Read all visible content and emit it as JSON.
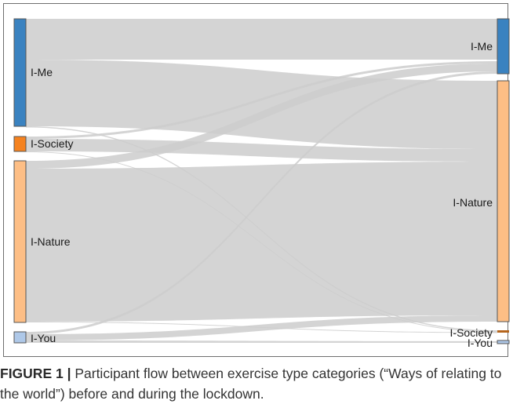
{
  "diagram": {
    "type": "sankey",
    "left_nodes": [
      {
        "id": "l-me",
        "label": "I-Me",
        "color": "#3a82c0"
      },
      {
        "id": "l-society",
        "label": "I-Society",
        "color": "#f5821f"
      },
      {
        "id": "l-nature",
        "label": "I-Nature",
        "color": "#fdbe85"
      },
      {
        "id": "l-you",
        "label": "I-You",
        "color": "#aec8e8"
      }
    ],
    "right_nodes": [
      {
        "id": "r-me",
        "label": "I-Me",
        "color": "#3a82c0"
      },
      {
        "id": "r-nature",
        "label": "I-Nature",
        "color": "#fdbe85"
      },
      {
        "id": "r-society",
        "label": "I-Society",
        "color": "#b5651d"
      },
      {
        "id": "r-you",
        "label": "I-You",
        "color": "#aec8e8"
      }
    ],
    "link_color": "#cccccc"
  },
  "caption": {
    "label": "FIGURE 1 |",
    "text": " Participant flow between exercise type categories (“Ways of relating to the world”) before and during the lockdown."
  }
}
